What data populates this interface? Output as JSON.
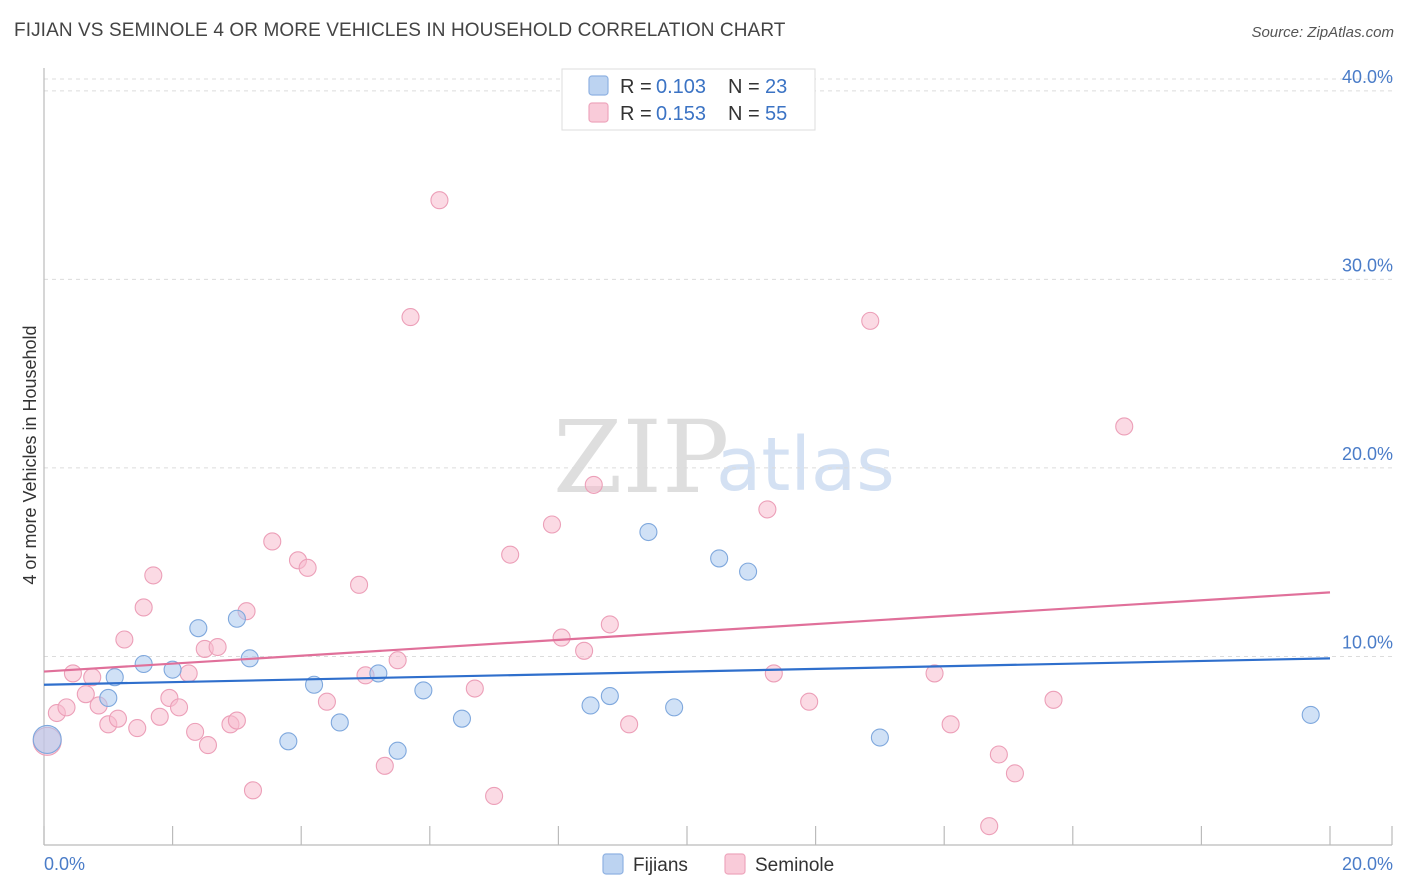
{
  "header": {
    "title": "FIJIAN VS SEMINOLE 4 OR MORE VEHICLES IN HOUSEHOLD CORRELATION CHART",
    "source": "Source: ZipAtlas.com"
  },
  "watermark": {
    "zip": "ZIP",
    "atlas": "atlas"
  },
  "chart_data": {
    "type": "scatter",
    "title": "FIJIAN VS SEMINOLE 4 OR MORE VEHICLES IN HOUSEHOLD CORRELATION CHART",
    "xlabel": "",
    "ylabel": "4 or more Vehicles in Household",
    "xlim": [
      0,
      20
    ],
    "ylim": [
      0,
      41
    ],
    "x_tick_labels": [
      "0.0%",
      "20.0%"
    ],
    "y_ticks": [
      10,
      20,
      30,
      40
    ],
    "y_tick_labels": [
      "10.0%",
      "20.0%",
      "30.0%",
      "40.0%"
    ],
    "grid": true,
    "legend_position": "top-center",
    "series": [
      {
        "name": "Fijians",
        "color": "#aac8ee",
        "line_color": "#2f6fcc",
        "R": "0.103",
        "N": "23",
        "trend": [
          [
            0,
            8.5
          ],
          [
            20,
            9.9
          ]
        ],
        "points": [
          [
            0.05,
            5.6
          ],
          [
            1.1,
            8.9
          ],
          [
            1.55,
            9.6
          ],
          [
            1.0,
            7.8
          ],
          [
            2.0,
            9.3
          ],
          [
            2.4,
            11.5
          ],
          [
            3.0,
            12.0
          ],
          [
            3.2,
            9.9
          ],
          [
            3.8,
            5.5
          ],
          [
            4.2,
            8.5
          ],
          [
            4.6,
            6.5
          ],
          [
            5.2,
            9.1
          ],
          [
            5.5,
            5.0
          ],
          [
            5.9,
            8.2
          ],
          [
            6.5,
            6.7
          ],
          [
            8.5,
            7.4
          ],
          [
            8.8,
            7.9
          ],
          [
            9.4,
            16.6
          ],
          [
            9.8,
            7.3
          ],
          [
            10.5,
            15.2
          ],
          [
            10.95,
            14.5
          ],
          [
            13.0,
            5.7
          ],
          [
            19.7,
            6.9
          ]
        ]
      },
      {
        "name": "Seminole",
        "color": "#f7bccd",
        "line_color": "#e0709a",
        "R": "0.153",
        "N": "55",
        "trend": [
          [
            0,
            9.2
          ],
          [
            20,
            13.4
          ]
        ],
        "points": [
          [
            0.2,
            7.0
          ],
          [
            0.35,
            7.3
          ],
          [
            0.45,
            9.1
          ],
          [
            0.65,
            8.0
          ],
          [
            0.75,
            8.9
          ],
          [
            0.85,
            7.4
          ],
          [
            1.0,
            6.4
          ],
          [
            1.15,
            6.7
          ],
          [
            1.25,
            10.9
          ],
          [
            1.45,
            6.2
          ],
          [
            1.55,
            12.6
          ],
          [
            1.7,
            14.3
          ],
          [
            1.8,
            6.8
          ],
          [
            1.95,
            7.8
          ],
          [
            2.1,
            7.3
          ],
          [
            2.25,
            9.1
          ],
          [
            2.35,
            6.0
          ],
          [
            2.5,
            10.4
          ],
          [
            2.55,
            5.3
          ],
          [
            2.7,
            10.5
          ],
          [
            2.9,
            6.4
          ],
          [
            3.0,
            6.6
          ],
          [
            3.15,
            12.4
          ],
          [
            3.25,
            2.9
          ],
          [
            3.55,
            16.1
          ],
          [
            3.95,
            15.1
          ],
          [
            4.1,
            14.7
          ],
          [
            4.4,
            7.6
          ],
          [
            4.9,
            13.8
          ],
          [
            5.0,
            9.0
          ],
          [
            5.3,
            4.2
          ],
          [
            5.5,
            9.8
          ],
          [
            5.7,
            28.0
          ],
          [
            6.15,
            34.2
          ],
          [
            6.7,
            8.3
          ],
          [
            7.0,
            2.6
          ],
          [
            7.25,
            15.4
          ],
          [
            7.9,
            17.0
          ],
          [
            8.05,
            11.0
          ],
          [
            8.4,
            10.3
          ],
          [
            8.55,
            19.1
          ],
          [
            8.8,
            11.7
          ],
          [
            9.1,
            6.4
          ],
          [
            11.25,
            17.8
          ],
          [
            11.35,
            9.1
          ],
          [
            11.9,
            7.6
          ],
          [
            12.85,
            27.8
          ],
          [
            13.85,
            9.1
          ],
          [
            14.1,
            6.4
          ],
          [
            14.7,
            1.0
          ],
          [
            14.85,
            4.8
          ],
          [
            15.1,
            3.8
          ],
          [
            15.7,
            7.7
          ],
          [
            16.8,
            22.2
          ],
          [
            0.05,
            5.5
          ]
        ]
      }
    ]
  }
}
